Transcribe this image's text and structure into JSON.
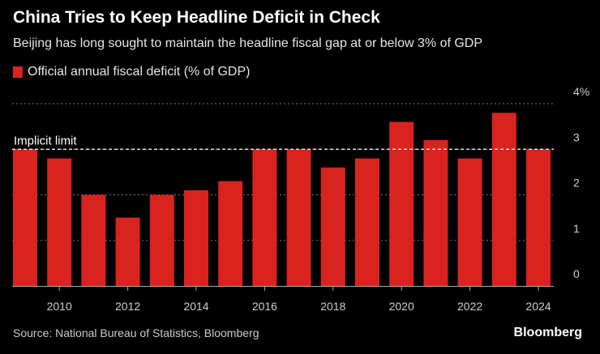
{
  "chart_data": {
    "type": "bar",
    "title": "China Tries to Keep Headline Deficit in Check",
    "subtitle": "Beijing has long sought to maintain the headline fiscal gap at or below 3% of GDP",
    "source": "Source: National Bureau of Statistics, Bloomberg",
    "brand": "Bloomberg",
    "series": [
      {
        "name": "Official annual fiscal deficit (% of GDP)",
        "color": "#d9231f",
        "values": [
          3.0,
          2.8,
          2.0,
          1.5,
          2.0,
          2.1,
          2.3,
          3.0,
          3.0,
          2.6,
          2.8,
          3.6,
          3.2,
          2.8,
          3.8,
          3.0
        ]
      }
    ],
    "x": [
      2009,
      2010,
      2011,
      2012,
      2013,
      2014,
      2015,
      2016,
      2017,
      2018,
      2019,
      2020,
      2021,
      2022,
      2023,
      2024
    ],
    "x_tick_labels": [
      "2010",
      "2012",
      "2014",
      "2016",
      "2018",
      "2020",
      "2022",
      "2024"
    ],
    "y_tick_labels": [
      "0",
      "1",
      "2",
      "3",
      "4%"
    ],
    "y_ticks": [
      0,
      1,
      2,
      3,
      4
    ],
    "ylim": [
      0,
      4
    ],
    "reference_line": {
      "value": 3,
      "label": "Implicit limit"
    },
    "xlabel": "",
    "ylabel": ""
  }
}
